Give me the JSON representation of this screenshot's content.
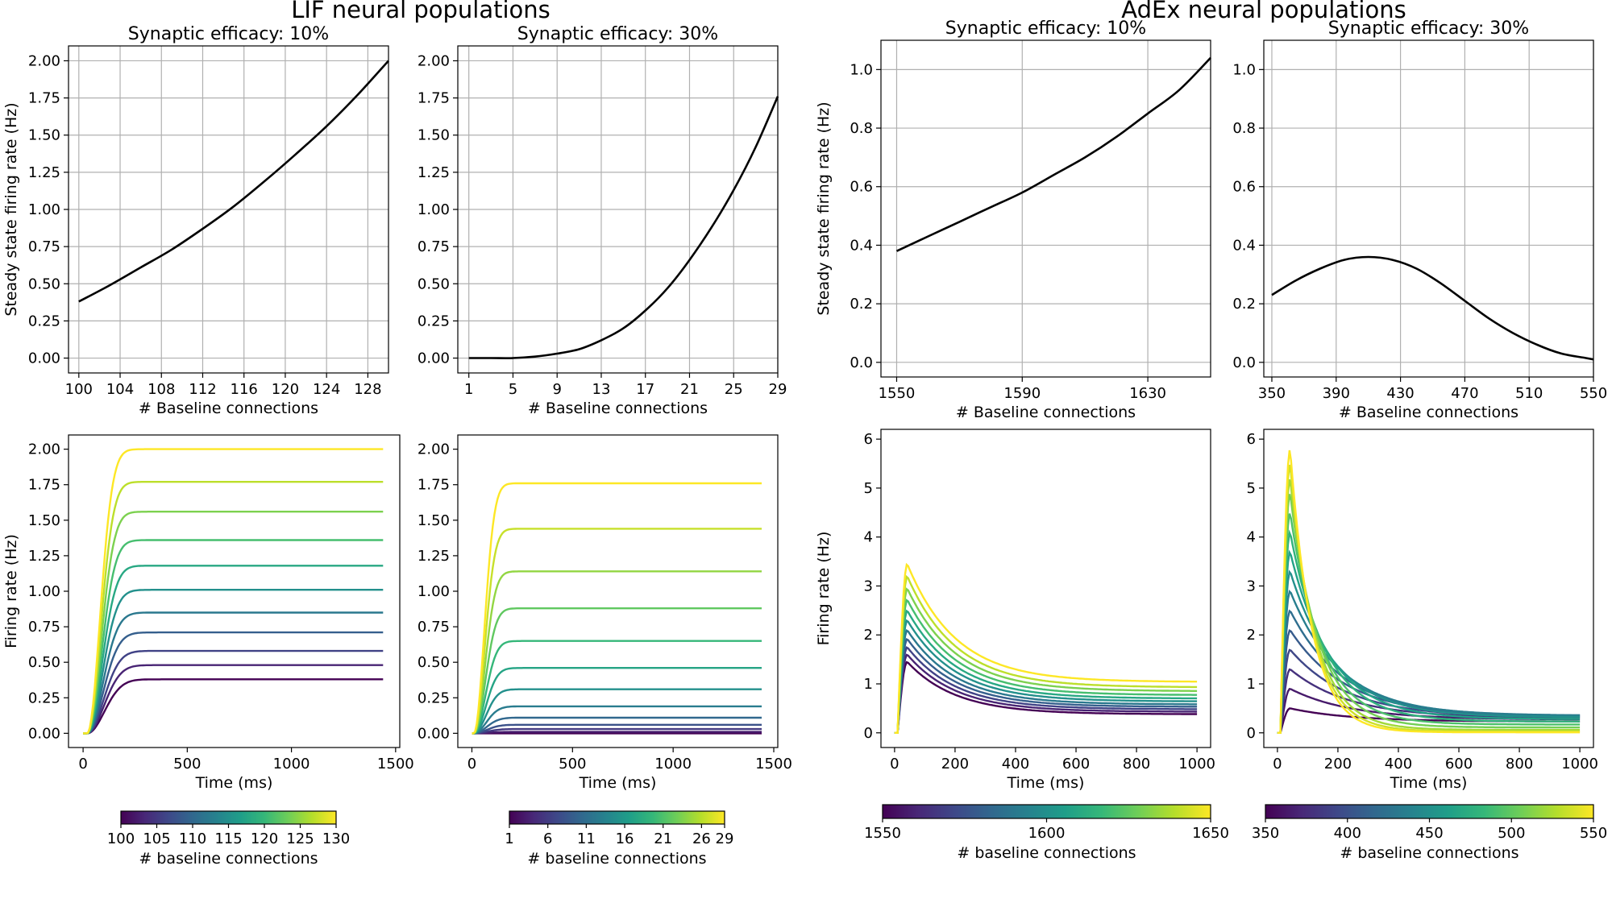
{
  "figure": {
    "left_title": "LIF neural populations",
    "right_title": "AdEx neural populations"
  },
  "colormap": {
    "name": "viridis",
    "stops": [
      "#440154",
      "#482878",
      "#3e4989",
      "#31688e",
      "#26828e",
      "#1f9e89",
      "#35b779",
      "#6ece58",
      "#b5de2b",
      "#fde725"
    ]
  },
  "chart_data": [
    {
      "id": "lif-ss-10",
      "type": "line",
      "title": "Synaptic efficacy: 10%",
      "xlabel": "# Baseline connections",
      "ylabel": "Steady state firing rate (Hz)",
      "xlim": [
        99,
        130
      ],
      "ylim": [
        -0.1,
        2.1
      ],
      "xticks": [
        100,
        104,
        108,
        112,
        116,
        120,
        124,
        128
      ],
      "yticks": [
        0.0,
        0.25,
        0.5,
        0.75,
        1.0,
        1.25,
        1.5,
        1.75,
        2.0
      ],
      "ytick_labels": [
        "0.00",
        "0.25",
        "0.50",
        "0.75",
        "1.00",
        "1.25",
        "1.50",
        "1.75",
        "2.00"
      ],
      "x": [
        100,
        103,
        106,
        109,
        112,
        115,
        118,
        121,
        124,
        127,
        130
      ],
      "y": [
        0.38,
        0.49,
        0.61,
        0.73,
        0.87,
        1.02,
        1.19,
        1.37,
        1.56,
        1.77,
        2.0
      ]
    },
    {
      "id": "lif-ss-30",
      "type": "line",
      "title": "Synaptic efficacy: 30%",
      "xlabel": "# Baseline connections",
      "ylabel": "",
      "xlim": [
        0,
        29
      ],
      "ylim": [
        -0.1,
        2.1
      ],
      "xticks": [
        1,
        5,
        9,
        13,
        17,
        21,
        25,
        29
      ],
      "yticks": [
        0.0,
        0.25,
        0.5,
        0.75,
        1.0,
        1.25,
        1.5,
        1.75,
        2.0
      ],
      "ytick_labels": [
        "0.00",
        "0.25",
        "0.50",
        "0.75",
        "1.00",
        "1.25",
        "1.50",
        "1.75",
        "2.00"
      ],
      "x": [
        1,
        3,
        5,
        7,
        9,
        11,
        13,
        15,
        17,
        19,
        21,
        23,
        25,
        27,
        29
      ],
      "y": [
        0.0,
        0.0,
        0.0,
        0.01,
        0.03,
        0.06,
        0.12,
        0.2,
        0.32,
        0.47,
        0.66,
        0.88,
        1.13,
        1.42,
        1.76
      ]
    },
    {
      "id": "adex-ss-10",
      "type": "line",
      "title": "Synaptic efficacy: 10%",
      "xlabel": "# Baseline connections",
      "ylabel": "Steady state firing rate (Hz)",
      "xlim": [
        1545,
        1650
      ],
      "ylim": [
        -0.05,
        1.1
      ],
      "xticks": [
        1550,
        1590,
        1630
      ],
      "yticks": [
        0.0,
        0.2,
        0.4,
        0.6,
        0.8,
        1.0
      ],
      "ytick_labels": [
        "0.0",
        "0.2",
        "0.4",
        "0.6",
        "0.8",
        "1.0"
      ],
      "x": [
        1550,
        1560,
        1570,
        1580,
        1590,
        1600,
        1610,
        1620,
        1630,
        1640,
        1650
      ],
      "y": [
        0.38,
        0.43,
        0.48,
        0.53,
        0.58,
        0.64,
        0.7,
        0.77,
        0.85,
        0.93,
        1.04
      ]
    },
    {
      "id": "adex-ss-30",
      "type": "line",
      "title": "Synaptic efficacy: 30%",
      "xlabel": "# Baseline connections",
      "ylabel": "",
      "xlim": [
        345,
        550
      ],
      "ylim": [
        -0.05,
        1.1
      ],
      "xticks": [
        350,
        390,
        430,
        470,
        510,
        550
      ],
      "yticks": [
        0.0,
        0.2,
        0.4,
        0.6,
        0.8,
        1.0
      ],
      "ytick_labels": [
        "0.0",
        "0.2",
        "0.4",
        "0.6",
        "0.8",
        "1.0"
      ],
      "x": [
        350,
        365,
        380,
        395,
        410,
        425,
        440,
        455,
        470,
        485,
        500,
        515,
        530,
        545,
        550
      ],
      "y": [
        0.23,
        0.28,
        0.32,
        0.35,
        0.36,
        0.35,
        0.32,
        0.27,
        0.21,
        0.15,
        0.1,
        0.06,
        0.03,
        0.015,
        0.01
      ]
    },
    {
      "id": "lif-ts-10",
      "type": "line",
      "xlabel": "Time (ms)",
      "ylabel": "Firing rate (Hz)",
      "xlim": [
        -70,
        1520
      ],
      "ylim": [
        -0.1,
        2.1
      ],
      "xticks": [
        0,
        500,
        1000,
        1500
      ],
      "yticks": [
        0.0,
        0.25,
        0.5,
        0.75,
        1.0,
        1.25,
        1.5,
        1.75,
        2.0
      ],
      "ytick_labels": [
        "0.00",
        "0.25",
        "0.50",
        "0.75",
        "1.00",
        "1.25",
        "1.50",
        "1.75",
        "2.00"
      ],
      "model": "lif",
      "t_end": 1440,
      "onset": 20,
      "rise_tau": 60,
      "delay": 40,
      "series_values": [
        0.38,
        0.48,
        0.58,
        0.71,
        0.85,
        1.01,
        1.18,
        1.36,
        1.56,
        1.77,
        2.0
      ],
      "colorbar": {
        "label": "# baseline connections",
        "range": [
          100,
          130
        ],
        "ticks": [
          100,
          105,
          110,
          115,
          120,
          125,
          130
        ]
      }
    },
    {
      "id": "lif-ts-30",
      "type": "line",
      "xlabel": "Time (ms)",
      "ylabel": "",
      "xlim": [
        -70,
        1520
      ],
      "ylim": [
        -0.1,
        2.1
      ],
      "xticks": [
        0,
        500,
        1000,
        1500
      ],
      "yticks": [
        0.0,
        0.25,
        0.5,
        0.75,
        1.0,
        1.25,
        1.5,
        1.75,
        2.0
      ],
      "ytick_labels": [
        "0.00",
        "0.25",
        "0.50",
        "0.75",
        "1.00",
        "1.25",
        "1.50",
        "1.75",
        "2.00"
      ],
      "model": "lif",
      "t_end": 1440,
      "onset": 10,
      "rise_tau": 50,
      "delay": 20,
      "series_values": [
        0.0,
        0.01,
        0.03,
        0.06,
        0.11,
        0.19,
        0.31,
        0.46,
        0.65,
        0.88,
        1.14,
        1.44,
        1.76
      ],
      "colorbar": {
        "label": "# baseline connections",
        "range": [
          1,
          29
        ],
        "ticks": [
          1,
          6,
          11,
          16,
          21,
          26,
          29
        ]
      }
    },
    {
      "id": "adex-ts-10",
      "type": "line",
      "xlabel": "Time (ms)",
      "ylabel": "Firing rate (Hz)",
      "xlim": [
        -45,
        1045
      ],
      "ylim": [
        -0.3,
        6.2
      ],
      "xticks": [
        0,
        200,
        400,
        600,
        800,
        1000
      ],
      "yticks": [
        0,
        1,
        2,
        3,
        4,
        5,
        6
      ],
      "ytick_labels": [
        "0",
        "1",
        "2",
        "3",
        "4",
        "5",
        "6"
      ],
      "model": "adex",
      "t_end": 1000,
      "series_peaks": [
        1.45,
        1.6,
        1.75,
        1.92,
        2.1,
        2.3,
        2.5,
        2.72,
        2.95,
        3.2,
        3.45
      ],
      "series_final": [
        0.38,
        0.43,
        0.48,
        0.53,
        0.58,
        0.64,
        0.7,
        0.77,
        0.85,
        0.93,
        1.04
      ],
      "series_decay": [
        160,
        160,
        160,
        160,
        160,
        160,
        160,
        160,
        160,
        160,
        160
      ],
      "colorbar": {
        "label": "# baseline connections",
        "range": [
          1550,
          1650
        ],
        "ticks": [
          1550,
          1600,
          1650
        ]
      }
    },
    {
      "id": "adex-ts-30",
      "type": "line",
      "xlabel": "Time (ms)",
      "ylabel": "",
      "xlim": [
        -45,
        1045
      ],
      "ylim": [
        -0.3,
        6.2
      ],
      "xticks": [
        0,
        200,
        400,
        600,
        800,
        1000
      ],
      "yticks": [
        0,
        1,
        2,
        3,
        4,
        5,
        6
      ],
      "ytick_labels": [
        "0",
        "1",
        "2",
        "3",
        "4",
        "5",
        "6"
      ],
      "model": "adex",
      "t_end": 1000,
      "series_peaks": [
        0.5,
        0.9,
        1.3,
        1.7,
        2.1,
        2.5,
        2.9,
        3.3,
        3.7,
        4.1,
        4.5,
        4.9,
        5.2,
        5.5,
        5.8
      ],
      "series_final": [
        0.23,
        0.27,
        0.3,
        0.32,
        0.34,
        0.35,
        0.35,
        0.32,
        0.28,
        0.23,
        0.17,
        0.11,
        0.06,
        0.03,
        0.01
      ],
      "series_decay": [
        200,
        200,
        195,
        190,
        185,
        175,
        165,
        150,
        135,
        120,
        105,
        95,
        85,
        78,
        72
      ],
      "colorbar": {
        "label": "# baseline connections",
        "range": [
          350,
          550
        ],
        "ticks": [
          350,
          400,
          450,
          500,
          550
        ]
      }
    }
  ]
}
